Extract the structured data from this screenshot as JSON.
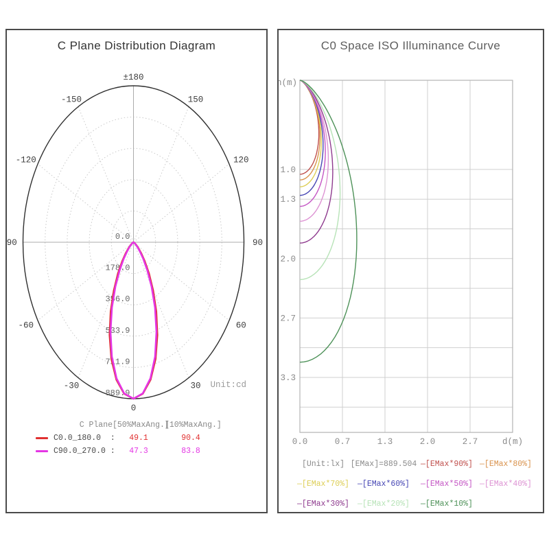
{
  "left_panel": {
    "title": "C Plane Distribution Diagram",
    "unit_label": "Unit:cd",
    "legend": {
      "header_plane": "C Plane",
      "header_50": "[50%MaxAng.]",
      "header_10": "[10%MaxAng.]",
      "rows": [
        {
          "name": "C0.0_180.0  :",
          "val50": "49.1",
          "val10": "90.4",
          "color": "#e03030"
        },
        {
          "name": "C90.0_270.0 :",
          "val50": "47.3",
          "val10": "83.8",
          "color": "#e436e4"
        }
      ]
    }
  },
  "right_panel": {
    "title": "C0 Space ISO Illuminance Curve",
    "x_axis_label": "d(m)",
    "y_axis_label": "h(m)",
    "legend_rows": [
      [
        {
          "text": "[Unit:lx]",
          "color": "#8a8a8a",
          "dash": ""
        },
        {
          "text": "[EMax]=889.504",
          "color": "#8a8a8a",
          "dash": ""
        },
        {
          "text": "[EMax*90%]",
          "color": "#c0504d",
          "dash": "—"
        },
        {
          "text": "[EMax*80%]",
          "color": "#d9924c",
          "dash": "—"
        }
      ],
      [
        {
          "text": "[EMax*70%]",
          "color": "#ddce55",
          "dash": "—"
        },
        {
          "text": "[EMax*60%]",
          "color": "#4646b4",
          "dash": "—"
        },
        {
          "text": "[EMax*50%]",
          "color": "#c455c4",
          "dash": "—"
        },
        {
          "text": "[EMax*40%]",
          "color": "#dd93d3",
          "dash": "—"
        }
      ],
      [
        {
          "text": "[EMax*30%]",
          "color": "#8e3a8e",
          "dash": "—"
        },
        {
          "text": "[EMax*20%]",
          "color": "#b7e3b7",
          "dash": "—"
        },
        {
          "text": "[EMax*10%]",
          "color": "#4d9158",
          "dash": "—"
        }
      ]
    ]
  },
  "chart_data": [
    {
      "type": "polar",
      "title": "C Plane Distribution Diagram",
      "unit": "cd",
      "r_max": 889.9,
      "radial_tick_labels": [
        "0.0",
        "178.0",
        "356.0",
        "533.9",
        "711.9",
        "889.9"
      ],
      "angle_labels": [
        {
          "angle": 180,
          "label": "±180"
        },
        {
          "angle": -150,
          "label": "-150"
        },
        {
          "angle": 150,
          "label": "150"
        },
        {
          "angle": -120,
          "label": "-120"
        },
        {
          "angle": 120,
          "label": "120"
        },
        {
          "angle": -90,
          "label": "-90"
        },
        {
          "angle": 90,
          "label": "90"
        },
        {
          "angle": -60,
          "label": "-60"
        },
        {
          "angle": 60,
          "label": "60"
        },
        {
          "angle": -30,
          "label": "-30"
        },
        {
          "angle": 30,
          "label": "30"
        },
        {
          "angle": 0,
          "label": "0"
        }
      ],
      "angles_deg": [
        0,
        5,
        10,
        15,
        20,
        25,
        30,
        35,
        40,
        45,
        50,
        55,
        60,
        65,
        70,
        75,
        80,
        85,
        90
      ],
      "series": [
        {
          "name": "C0.0_180.0",
          "color": "#e03030",
          "beam_angle_50pct": 49.1,
          "beam_angle_10pct": 90.4,
          "intensity_cd": [
            889.9,
            864.6,
            793.3,
            687.2,
            561.7,
            433.8,
            316.2,
            217.5,
            141.3,
            86.7,
            50.2,
            27.4,
            14.2,
            6.9,
            3.2,
            1.4,
            0.6,
            0.2,
            0.1
          ]
        },
        {
          "name": "C90.0_270.0",
          "color": "#e436e4",
          "beam_angle_50pct": 47.3,
          "beam_angle_10pct": 83.8,
          "intensity_cd": [
            889.9,
            862.8,
            786.2,
            673.4,
            542.0,
            410.1,
            291.7,
            195.0,
            122.4,
            72.3,
            40.2,
            20.9,
            10.3,
            4.7,
            2.0,
            0.8,
            0.3,
            0.1,
            0.0
          ]
        }
      ]
    },
    {
      "type": "iso_illuminance",
      "emax_lx": 889.504,
      "beam_half_angle_50pct_deg": 24.55,
      "x_range_m": [
        0,
        3.333
      ],
      "y_range_m": [
        0,
        3.95
      ],
      "x_grid": [
        0,
        0.667,
        1.333,
        2.0,
        2.667,
        3.333
      ],
      "x_tick_labels": [
        {
          "v": 0,
          "label": "0.0"
        },
        {
          "v": 0.667,
          "label": "0.7"
        },
        {
          "v": 1.333,
          "label": "1.3"
        },
        {
          "v": 2.0,
          "label": "2.0"
        },
        {
          "v": 2.667,
          "label": "2.7"
        }
      ],
      "y_grid_start": 1.0,
      "y_grid_step": 0.3333,
      "y_grid_count": 9,
      "y_tick_labels": [
        {
          "v": 1.0,
          "label": "1.0"
        },
        {
          "v": 1.333,
          "label": "1.3"
        },
        {
          "v": 2.0,
          "label": "2.0"
        },
        {
          "v": 2.667,
          "label": "2.7"
        },
        {
          "v": 3.333,
          "label": "3.3"
        }
      ],
      "curves": [
        {
          "label": "EMax*90%",
          "fraction": 0.9,
          "color": "#c0504d"
        },
        {
          "label": "EMax*80%",
          "fraction": 0.8,
          "color": "#d9924c"
        },
        {
          "label": "EMax*70%",
          "fraction": 0.7,
          "color": "#ddce55"
        },
        {
          "label": "EMax*60%",
          "fraction": 0.6,
          "color": "#4646b4"
        },
        {
          "label": "EMax*50%",
          "fraction": 0.5,
          "color": "#c455c4"
        },
        {
          "label": "EMax*40%",
          "fraction": 0.4,
          "color": "#dd93d3"
        },
        {
          "label": "EMax*30%",
          "fraction": 0.3,
          "color": "#8e3a8e"
        },
        {
          "label": "EMax*20%",
          "fraction": 0.2,
          "color": "#b7e3b7"
        },
        {
          "label": "EMax*10%",
          "fraction": 0.1,
          "color": "#4d9158"
        }
      ]
    }
  ]
}
